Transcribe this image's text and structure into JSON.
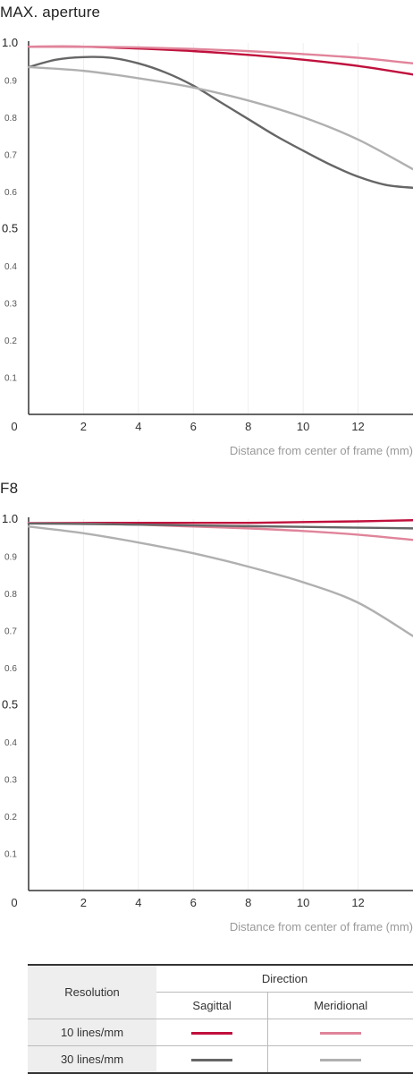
{
  "chart_data": [
    {
      "type": "line",
      "title": "MAX. aperture",
      "xlabel": "Distance from center of frame (mm)",
      "ylabel": "",
      "xlim": [
        0,
        14
      ],
      "ylim": [
        0,
        1.0
      ],
      "x_ticks": [
        0,
        2,
        4,
        6,
        8,
        10,
        12
      ],
      "y_ticks": [
        0.1,
        0.2,
        0.3,
        0.4,
        0.5,
        0.6,
        0.7,
        0.8,
        0.9,
        1.0
      ],
      "y_tick_labels": [
        "0.1",
        "0.2",
        "0.3",
        "0.4",
        "0.5",
        "0.6",
        "0.7",
        "0.8",
        "0.9",
        "1.0"
      ],
      "grid": "vertical",
      "series": [
        {
          "name": "10 lines/mm Sagittal",
          "color": "#c0103c",
          "x": [
            0,
            2,
            4,
            6,
            8,
            10,
            12,
            14
          ],
          "y": [
            0.99,
            0.99,
            0.985,
            0.978,
            0.968,
            0.955,
            0.938,
            0.915
          ]
        },
        {
          "name": "10 lines/mm Meridional",
          "color": "#e0849a",
          "x": [
            0,
            2,
            4,
            6,
            8,
            10,
            12,
            14
          ],
          "y": [
            0.99,
            0.99,
            0.988,
            0.984,
            0.978,
            0.97,
            0.96,
            0.945
          ]
        },
        {
          "name": "30 lines/mm Sagittal",
          "color": "#666666",
          "x": [
            0,
            1,
            2,
            3,
            4,
            5,
            6,
            7,
            8,
            9,
            10,
            11,
            12,
            13,
            14
          ],
          "y": [
            0.935,
            0.955,
            0.962,
            0.96,
            0.945,
            0.92,
            0.885,
            0.84,
            0.795,
            0.75,
            0.71,
            0.672,
            0.64,
            0.618,
            0.61
          ]
        },
        {
          "name": "30 lines/mm Meridional",
          "color": "#b0b0b0",
          "x": [
            0,
            2,
            4,
            6,
            8,
            10,
            12,
            14
          ],
          "y": [
            0.935,
            0.925,
            0.905,
            0.88,
            0.845,
            0.8,
            0.74,
            0.66
          ]
        }
      ]
    },
    {
      "type": "line",
      "title": "F8",
      "xlabel": "Distance from center of frame (mm)",
      "ylabel": "",
      "xlim": [
        0,
        14
      ],
      "ylim": [
        0,
        1.0
      ],
      "x_ticks": [
        0,
        2,
        4,
        6,
        8,
        10,
        12
      ],
      "y_ticks": [
        0.1,
        0.2,
        0.3,
        0.4,
        0.5,
        0.6,
        0.7,
        0.8,
        0.9,
        1.0
      ],
      "y_tick_labels": [
        "0.1",
        "0.2",
        "0.3",
        "0.4",
        "0.5",
        "0.6",
        "0.7",
        "0.8",
        "0.9",
        "1.0"
      ],
      "grid": "vertical",
      "series": [
        {
          "name": "10 lines/mm Sagittal",
          "color": "#c0103c",
          "x": [
            0,
            2,
            4,
            6,
            8,
            10,
            12,
            14
          ],
          "y": [
            0.99,
            0.99,
            0.99,
            0.99,
            0.99,
            0.992,
            0.994,
            0.997
          ]
        },
        {
          "name": "10 lines/mm Meridional",
          "color": "#e0849a",
          "x": [
            0,
            2,
            4,
            6,
            8,
            10,
            12,
            14
          ],
          "y": [
            0.99,
            0.988,
            0.985,
            0.98,
            0.975,
            0.968,
            0.958,
            0.944
          ]
        },
        {
          "name": "30 lines/mm Sagittal",
          "color": "#666666",
          "x": [
            0,
            2,
            4,
            6,
            8,
            10,
            12,
            14
          ],
          "y": [
            0.988,
            0.987,
            0.985,
            0.983,
            0.981,
            0.979,
            0.977,
            0.975
          ]
        },
        {
          "name": "30 lines/mm Meridional",
          "color": "#b0b0b0",
          "x": [
            0,
            2,
            4,
            6,
            8,
            10,
            12,
            14
          ],
          "y": [
            0.98,
            0.962,
            0.937,
            0.908,
            0.872,
            0.83,
            0.775,
            0.685
          ]
        }
      ]
    }
  ],
  "legend": {
    "resolution_header": "Resolution",
    "direction_header": "Direction",
    "sagittal": "Sagittal",
    "meridional": "Meridional",
    "rows": [
      {
        "label": "10 lines/mm",
        "sagittal_color": "#c0103c",
        "meridional_color": "#e0849a"
      },
      {
        "label": "30 lines/mm",
        "sagittal_color": "#666666",
        "meridional_color": "#b0b0b0"
      }
    ]
  }
}
